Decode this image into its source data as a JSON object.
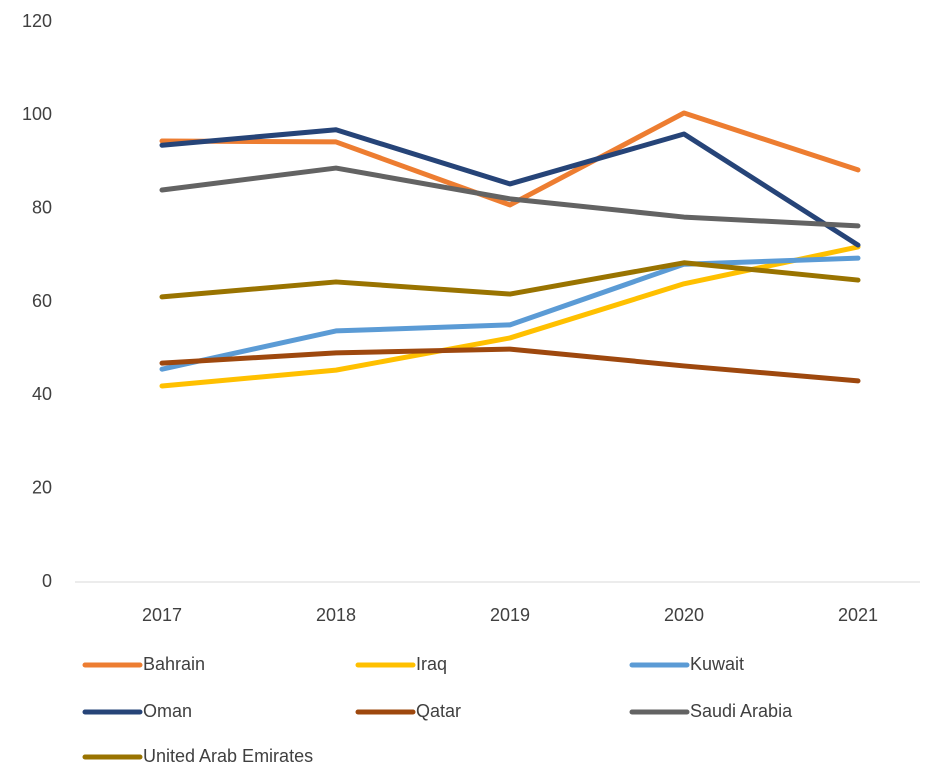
{
  "chart_data": {
    "type": "line",
    "categories": [
      "2017",
      "2018",
      "2019",
      "2020",
      "2021"
    ],
    "series": [
      {
        "name": "Bahrain",
        "color": "#ed7d31",
        "values": [
          94.5,
          94.3,
          80.8,
          100.5,
          88.3
        ]
      },
      {
        "name": "Iraq",
        "color": "#ffc000",
        "values": [
          42,
          45.4,
          52.3,
          63.9,
          71.8
        ]
      },
      {
        "name": "Kuwait",
        "color": "#5b9bd5",
        "values": [
          45.6,
          53.8,
          55.1,
          68.1,
          69.4
        ]
      },
      {
        "name": "Oman",
        "color": "#264478",
        "values": [
          93.6,
          96.9,
          85.3,
          96,
          72.2
        ]
      },
      {
        "name": "Qatar",
        "color": "#9e480e",
        "values": [
          46.9,
          49.1,
          49.9,
          46.3,
          43.1
        ]
      },
      {
        "name": "Saudi Arabia",
        "color": "#636363",
        "values": [
          84,
          88.7,
          82.1,
          78.2,
          76.3
        ]
      },
      {
        "name": "United Arab Emirates",
        "color": "#997300",
        "values": [
          61.1,
          64.3,
          61.7,
          68.4,
          64.7
        ]
      }
    ],
    "ylim": [
      0,
      120
    ],
    "yticks": [
      0,
      20,
      40,
      60,
      80,
      100,
      120
    ],
    "grid": false,
    "legend": "bottom"
  }
}
